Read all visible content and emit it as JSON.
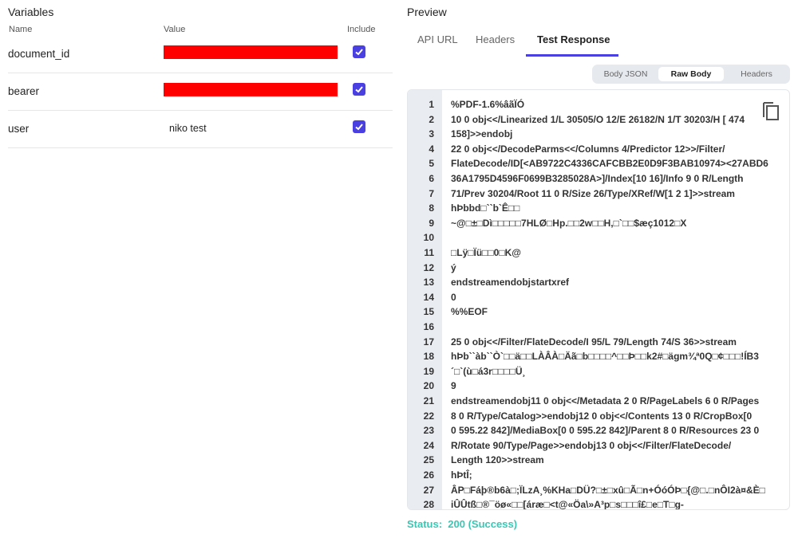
{
  "variables": {
    "title": "Variables",
    "columns": {
      "name": "Name",
      "value": "Value",
      "include": "Include"
    },
    "rows": [
      {
        "name": "document_id",
        "value": "",
        "redacted": true,
        "include": true
      },
      {
        "name": "bearer",
        "value": "",
        "redacted": true,
        "include": true
      },
      {
        "name": "user",
        "value": "niko test",
        "redacted": false,
        "include": true
      }
    ]
  },
  "preview": {
    "title": "Preview",
    "tabs": [
      {
        "label": "API URL",
        "active": false
      },
      {
        "label": "Headers",
        "active": false
      },
      {
        "label": "Test Response",
        "active": true
      }
    ],
    "segments": [
      {
        "label": "Body JSON",
        "active": false
      },
      {
        "label": "Raw Body",
        "active": true
      },
      {
        "label": "Headers",
        "active": false
      }
    ],
    "accent_color": "#4a3fe0",
    "copy_icon": "copy-icon",
    "lines": [
      "%PDF-1.6%âãÏÓ",
      "10 0 obj<</Linearized 1/L 30505/O 12/E 26182/N 1/T 30203/H [ 474",
      "158]>>endobj",
      "22 0 obj<</DecodeParms<</Columns 4/Predictor 12>>/Filter/",
      "FlateDecode/ID[<AB9722C4336CAFCBB2E0D9F3BAB10974><27ABD6",
      "36A1795D4596F0699B3285028A>]/Index[10 16]/Info 9 0 R/Length",
      "71/Prev 30204/Root 11 0 R/Size 26/Type/XRef/W[1 2 1]>>stream",
      "hÞbbd□``b`Ê□□",
      "~@□±□Dì□□□□□7HLØ□Hp.□□2w□□H,□`□□$æç1012□X",
      "",
      "□Lÿ□Ïü□□0□K@",
      "ý",
      "endstreamendobjstartxref",
      "0",
      "%%EOF",
      "",
      "25 0 obj<</Filter/FlateDecode/I 95/L 79/Length 74/S 36>>stream",
      "hÞb``àb``Ò`□□ä□□LÀÂÀ□Äã□b□□□□^□□Þ□□k2#□ägm¾ª0Q□¢□□□!ÍB3",
      "´□`(ù□á3r□□□□Ü¸",
      "9",
      "endstreamendobj11 0 obj<</Metadata 2 0 R/PageLabels 6 0 R/Pages",
      "8 0 R/Type/Catalog>>endobj12 0 obj<</Contents 13 0 R/CropBox[0",
      "0 595.22 842]/MediaBox[0 0 595.22 842]/Parent 8 0 R/Resources 23 0",
      "R/Rotate 90/Type/Page>>endobj13 0 obj<</Filter/FlateDecode/",
      "Length 120>>stream",
      "hÞtÎ;",
      "ÂP□Fáþ®b6à□;ÏLzA¸%KHa□DÜ?□±□xû□Ã□n+ÓóÓÞ□{@□.□nÔI2à¤&È□",
      "iÛÛtß□®¯öø«□□[áræ□<t@«Öa\\»A³p□s□□□î£□e□T□g-"
    ],
    "status_label": "Status:",
    "status_value": "200 (Success)",
    "status_color": "#3cc6b4"
  }
}
